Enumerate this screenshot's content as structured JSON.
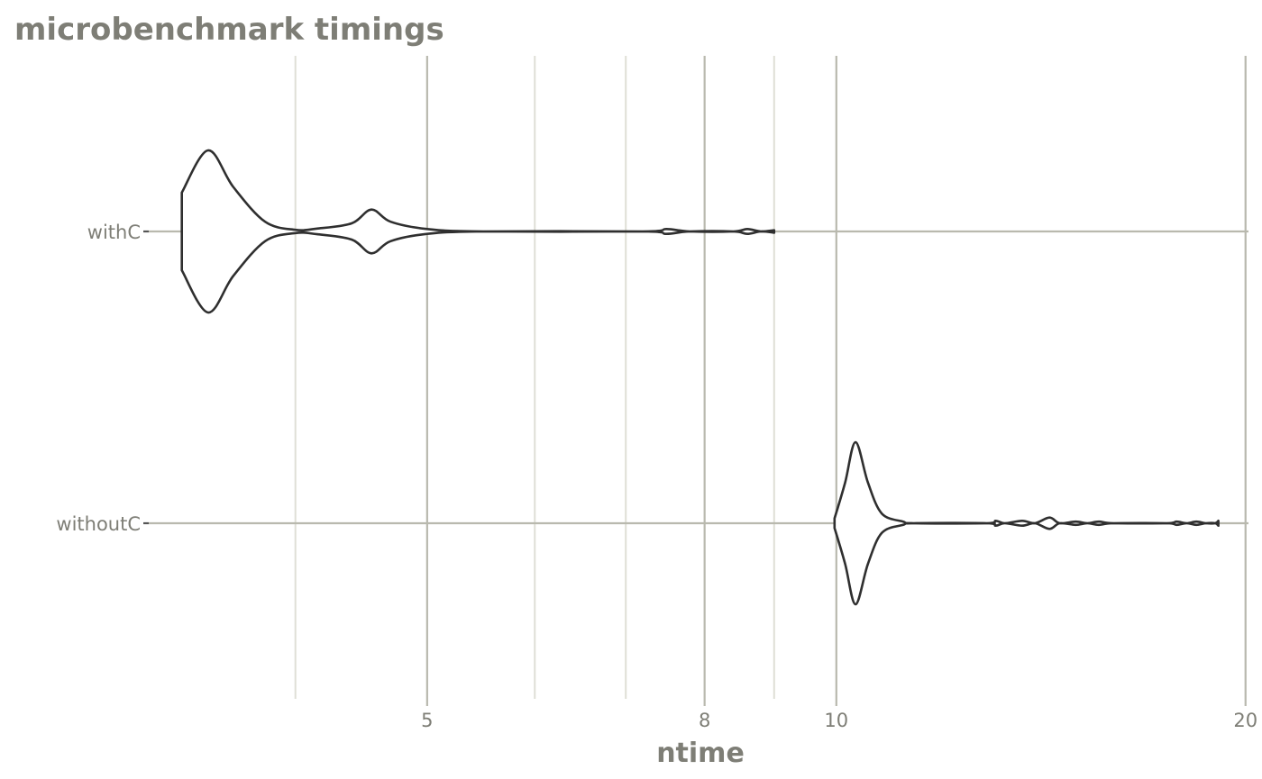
{
  "chart_data": {
    "type": "violin",
    "title": "microbenchmark timings",
    "xlabel": "ntime",
    "ylabel": "",
    "x_scale": "log10",
    "xlim": [
      3.12,
      20.1
    ],
    "x_major_ticks": [
      5,
      8,
      10,
      20
    ],
    "x_minor_gridlines": [
      4,
      6,
      7,
      9
    ],
    "categories": [
      "withC",
      "withoutC"
    ],
    "grid": true,
    "legend": "none",
    "colors": {
      "title": "#7e7e76",
      "axis_text": "#7e7e76",
      "major_grid": "#b9b9ae",
      "minor_grid": "#dfdfd6",
      "violin_outline": "#2f2f2f",
      "violin_fill": "#ffffff"
    },
    "series": [
      {
        "name": "withC",
        "density": [
          [
            3.3,
            0.48
          ],
          [
            3.45,
            1.0
          ],
          [
            3.6,
            0.55
          ],
          [
            3.8,
            0.12
          ],
          [
            4.0,
            0.02
          ],
          [
            4.15,
            0.035
          ],
          [
            4.4,
            0.1
          ],
          [
            4.55,
            0.27
          ],
          [
            4.7,
            0.12
          ],
          [
            5.0,
            0.03
          ],
          [
            5.5,
            0.0
          ],
          [
            7.2,
            0.0
          ],
          [
            7.5,
            0.03
          ],
          [
            7.8,
            0.0
          ],
          [
            8.4,
            0.0
          ],
          [
            8.6,
            0.03
          ],
          [
            8.8,
            0.0
          ],
          [
            9.0,
            0.015
          ]
        ]
      },
      {
        "name": "withoutC",
        "density": [
          [
            9.97,
            0.06
          ],
          [
            10.15,
            0.5
          ],
          [
            10.33,
            1.0
          ],
          [
            10.55,
            0.5
          ],
          [
            10.8,
            0.12
          ],
          [
            11.2,
            0.02
          ],
          [
            11.4,
            0.0
          ],
          [
            12.9,
            0.0
          ],
          [
            13.1,
            0.03
          ],
          [
            13.3,
            0.0
          ],
          [
            13.7,
            0.03
          ],
          [
            14.0,
            0.0
          ],
          [
            14.35,
            0.07
          ],
          [
            14.6,
            0.0
          ],
          [
            15.0,
            0.02
          ],
          [
            15.3,
            0.0
          ],
          [
            15.6,
            0.02
          ],
          [
            16.0,
            0.0
          ],
          [
            17.5,
            0.0
          ],
          [
            17.8,
            0.02
          ],
          [
            18.1,
            0.0
          ],
          [
            18.4,
            0.02
          ],
          [
            18.7,
            0.0
          ],
          [
            19.0,
            0.0
          ],
          [
            19.1,
            0.03
          ]
        ]
      }
    ]
  }
}
